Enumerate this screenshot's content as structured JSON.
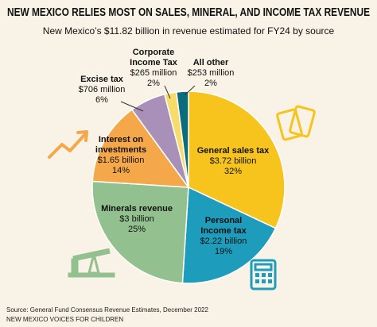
{
  "chart_data": {
    "type": "pie",
    "title": "NEW MEXICO RELIES MOST ON SALES, MINERAL, AND INCOME TAX REVENUE",
    "subtitle": "New Mexico’s $11.82 billion in revenue estimated for FY24 by source",
    "categories": [
      "General sales tax",
      "Personal Income tax",
      "Minerals revenue",
      "Interest on investments",
      "Excise tax",
      "Corporate Income Tax",
      "All other"
    ],
    "values": [
      32,
      19,
      25,
      14,
      6,
      2,
      2
    ],
    "value_labels": [
      "32%",
      "19%",
      "25%",
      "14%",
      "6%",
      "2%",
      "2%"
    ],
    "amount_labels": [
      "$3.72 billion",
      "$2.22 billion",
      "$3 billion",
      "$1.65 billion",
      "$706 million",
      "$265 million",
      "$253 million"
    ],
    "colors": [
      "#f6c41c",
      "#1e9cbc",
      "#92c08e",
      "#f4a84a",
      "#a990b8",
      "#f7dc6c",
      "#0d6c7c"
    ],
    "source": "Source: General Fund Consensus Revenue Estimates, December 2022",
    "credit": "NEW MEXICO VOICES FOR CHILDREN"
  }
}
